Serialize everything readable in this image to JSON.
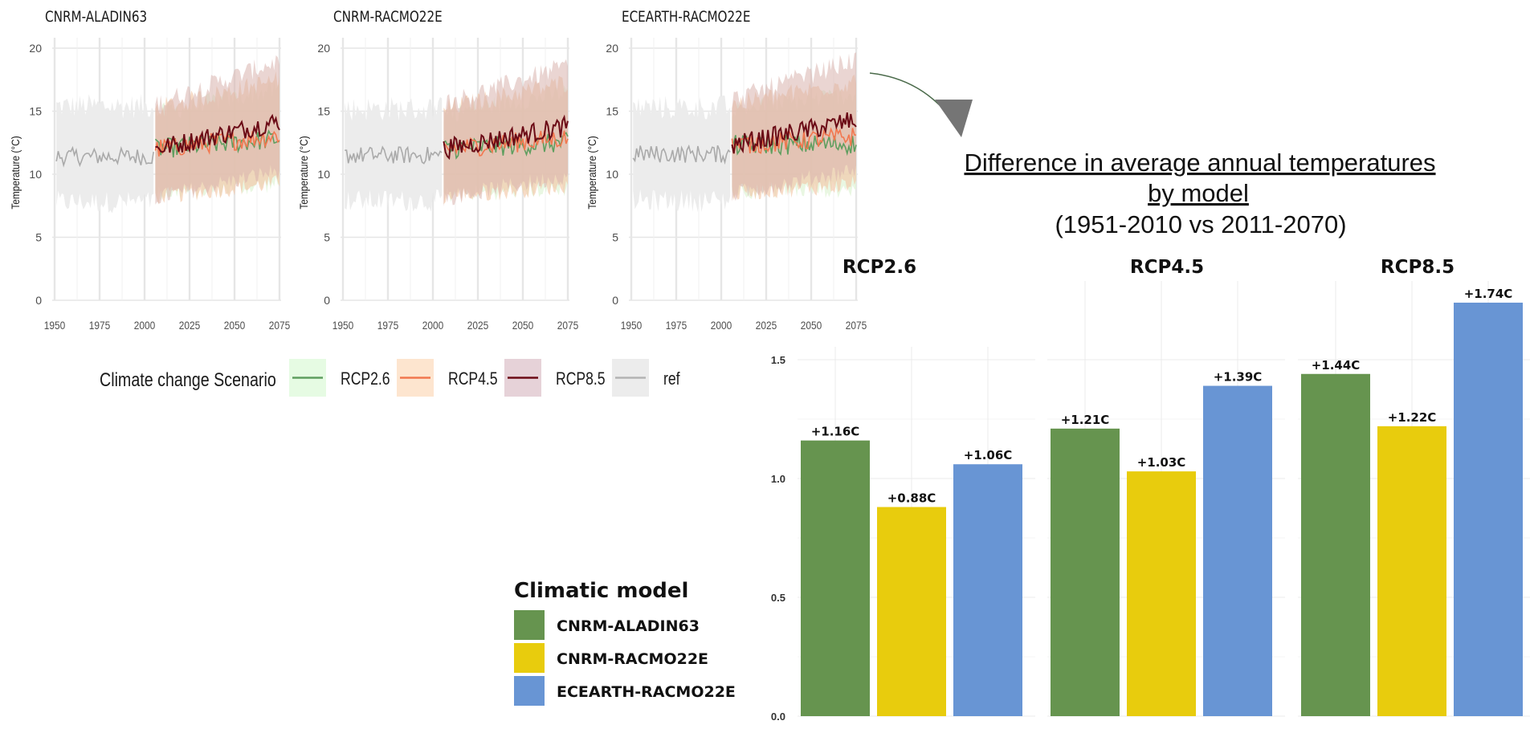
{
  "chart_data": [
    {
      "type": "line",
      "title": "CNRM-ALADIN63",
      "ylabel": "Temperature (°C)",
      "xlim": [
        1950,
        2075
      ],
      "ylim": [
        0,
        20
      ],
      "x_ticks": [
        1950,
        1975,
        2000,
        2025,
        2050,
        2075
      ],
      "y_ticks": [
        0,
        5,
        10,
        15,
        20
      ],
      "ref": {
        "x0": 1951,
        "x1": 2005,
        "mean": 11.4,
        "band_low": 7.8,
        "band_high": 15.4
      },
      "series": [
        {
          "name": "RCP2.6",
          "x0": 2006,
          "x1": 2075,
          "start": 12.0,
          "end": 12.8
        },
        {
          "name": "RCP4.5",
          "x0": 2006,
          "x1": 2075,
          "start": 12.0,
          "end": 13.1
        },
        {
          "name": "RCP8.5",
          "x0": 2006,
          "x1": 2075,
          "start": 12.0,
          "end": 14.2
        }
      ],
      "grid": true
    },
    {
      "type": "line",
      "title": "CNRM-RACMO22E",
      "ylabel": "Temperature (°C)",
      "xlim": [
        1950,
        2075
      ],
      "ylim": [
        0,
        20
      ],
      "x_ticks": [
        1950,
        1975,
        2000,
        2025,
        2050,
        2075
      ],
      "y_ticks": [
        0,
        5,
        10,
        15,
        20
      ],
      "ref": {
        "x0": 1951,
        "x1": 2005,
        "mean": 11.5,
        "band_low": 7.9,
        "band_high": 15.2
      },
      "series": [
        {
          "name": "RCP2.6",
          "x0": 2006,
          "x1": 2075,
          "start": 12.0,
          "end": 12.5
        },
        {
          "name": "RCP4.5",
          "x0": 2006,
          "x1": 2075,
          "start": 12.0,
          "end": 12.9
        },
        {
          "name": "RCP8.5",
          "x0": 2006,
          "x1": 2075,
          "start": 12.0,
          "end": 13.8
        }
      ],
      "grid": true
    },
    {
      "type": "line",
      "title": "ECEARTH-RACMO22E",
      "ylabel": "Temperature (°C)",
      "xlim": [
        1950,
        2075
      ],
      "ylim": [
        0,
        20
      ],
      "x_ticks": [
        1950,
        1975,
        2000,
        2025,
        2050,
        2075
      ],
      "y_ticks": [
        0,
        5,
        10,
        15,
        20
      ],
      "ref": {
        "x0": 1951,
        "x1": 2005,
        "mean": 11.6,
        "band_low": 7.9,
        "band_high": 15.3
      },
      "series": [
        {
          "name": "RCP2.6",
          "x0": 2006,
          "x1": 2075,
          "start": 12.3,
          "end": 12.4
        },
        {
          "name": "RCP4.5",
          "x0": 2006,
          "x1": 2075,
          "start": 12.3,
          "end": 13.0
        },
        {
          "name": "RCP8.5",
          "x0": 2006,
          "x1": 2075,
          "start": 12.3,
          "end": 14.3
        }
      ],
      "grid": true
    },
    {
      "type": "bar",
      "title": "Difference in average annual temperatures by model",
      "subtitle": "(1951-2010 vs 2011-2070)",
      "ylim": [
        0,
        1.75
      ],
      "y_ticks": [
        0.0,
        0.5,
        1.0,
        1.5
      ],
      "facets": [
        "RCP2.6",
        "RCP4.5",
        "RCP8.5"
      ],
      "categories": [
        "CNRM-ALADIN63",
        "CNRM-RACMO22E",
        "ECEARTH-RACMO22E"
      ],
      "series": [
        {
          "facet": "RCP2.6",
          "values": [
            1.16,
            0.88,
            1.06
          ],
          "labels": [
            "+1.16C",
            "+0.88C",
            "+1.06C"
          ]
        },
        {
          "facet": "RCP4.5",
          "values": [
            1.21,
            1.03,
            1.39
          ],
          "labels": [
            "+1.21C",
            "+1.03C",
            "+1.39C"
          ]
        },
        {
          "facet": "RCP8.5",
          "values": [
            1.44,
            1.22,
            1.74
          ],
          "labels": [
            "+1.44C",
            "+1.22C",
            "+1.74C"
          ]
        }
      ],
      "grid": true
    }
  ],
  "timeseries_legend": {
    "title": "Climate change Scenario",
    "items": [
      {
        "label": "RCP2.6",
        "line": "#5f9e5f",
        "fill": "#e6fbe3"
      },
      {
        "label": "RCP4.5",
        "line": "#f2774f",
        "fill": "#fde5cf"
      },
      {
        "label": "RCP8.5",
        "line": "#6b0b16",
        "fill": "#e6d2d8"
      },
      {
        "label": "ref",
        "line": "#b3b3b3",
        "fill": "#ececec"
      }
    ]
  },
  "model_legend": {
    "title": "Climatic model",
    "items": [
      {
        "label": "CNRM-ALADIN63",
        "color": "#66944f"
      },
      {
        "label": "CNRM-RACMO22E",
        "color": "#e8cc0d"
      },
      {
        "label": "ECEARTH-RACMO22E",
        "color": "#6895d4"
      }
    ]
  },
  "colors": {
    "ref_band": "#ececec",
    "ref_line": "#aaaaaa",
    "future_band": "#e0b39a",
    "grid": "#e6e6e6",
    "arrow": "#757575"
  }
}
